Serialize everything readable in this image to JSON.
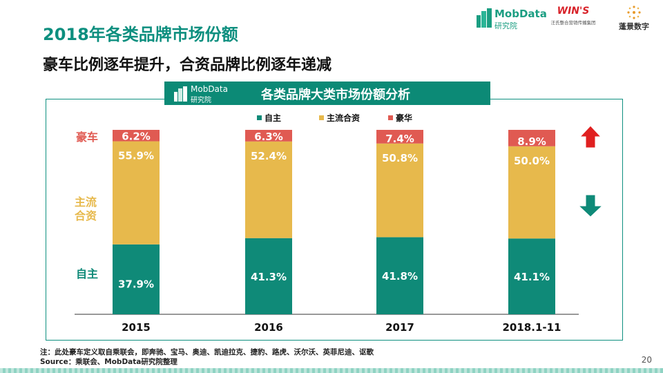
{
  "header": {
    "title": "2018年各类品牌市场份额",
    "subtitle": "豪车比例逐年提升，合资品牌比例逐年递减"
  },
  "logos": {
    "mobdata_name": "MobData",
    "mobdata_sub": "研究院",
    "wins_name": "WIN'S",
    "wins_sub": "汪氏整合营销传播集团",
    "pengjing_name": "蓬景数字"
  },
  "banner": {
    "logo_name": "MobData",
    "logo_sub": "研究院",
    "title": "各类品牌大类市场份额分析"
  },
  "chart_data": {
    "type": "bar",
    "stacked": true,
    "title": "各类品牌大类市场份额分析",
    "categories": [
      "2015",
      "2016",
      "2017",
      "2018.1-11"
    ],
    "series": [
      {
        "name": "自主",
        "values": [
          37.9,
          41.3,
          41.8,
          41.1
        ],
        "labels": [
          "37.9%",
          "41.3%",
          "41.8%",
          "41.1%"
        ],
        "color": "#0f8a78"
      },
      {
        "name": "主流合资",
        "values": [
          55.9,
          52.4,
          50.8,
          50.0
        ],
        "labels": [
          "55.9%",
          "52.4%",
          "50.8%",
          "50.0%"
        ],
        "color": "#e7b94c"
      },
      {
        "name": "豪华",
        "values": [
          6.2,
          6.3,
          7.4,
          8.9
        ],
        "labels": [
          "6.2%",
          "6.3%",
          "7.4%",
          "8.9%"
        ],
        "color": "#e05a52"
      }
    ],
    "legend_position": "top-center",
    "ylim": [
      0,
      100
    ],
    "grid": false,
    "side_labels": [
      {
        "text": "豪车",
        "color": "#e05a52"
      },
      {
        "text": "主流\n合资",
        "color": "#e7b94c"
      },
      {
        "text": "自主",
        "color": "#0f8a78"
      }
    ],
    "trend_arrows": [
      {
        "direction": "up",
        "color": "#e02020"
      },
      {
        "direction": "down",
        "color": "#0f8a78"
      }
    ]
  },
  "notes": {
    "note": "注：此处豪车定义取自乘联会，即奔驰、宝马、奥迪、凯迪拉克、捷豹、路虎、沃尔沃、英菲尼迪、讴歌",
    "source": "Source：乘联会、MobData研究院整理"
  },
  "page_number": "20"
}
